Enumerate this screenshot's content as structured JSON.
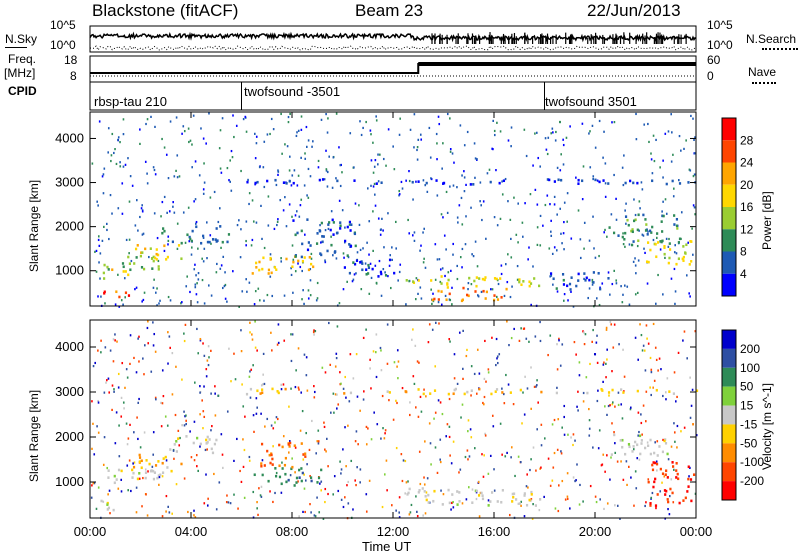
{
  "header": {
    "station": "Blackstone (fitACF)",
    "beam": "Beam 23",
    "date": "22/Jun/2013"
  },
  "left_labels": {
    "nsky": "N.Sky",
    "freq_line1": "Freq.",
    "freq_line2": "[MHz]",
    "cpid": "CPID"
  },
  "right_labels": {
    "nsearch": "N.Search",
    "nave": "Nave"
  },
  "noise_panel": {
    "left_ticks": [
      "10^5",
      "10^0"
    ],
    "right_ticks": [
      "10^5",
      "10^0"
    ]
  },
  "freq_panel": {
    "left_ticks": [
      "18",
      "8"
    ],
    "right_ticks": [
      "60",
      "0"
    ]
  },
  "cpid_segments": [
    {
      "label": "rbsp-tau 210",
      "start_hour": 0
    },
    {
      "label": "twofsound -3501",
      "start_hour": 6
    },
    {
      "label": "twofsound 3501",
      "start_hour": 18
    }
  ],
  "colors": {
    "power": [
      "#0000ff",
      "#1e5ab4",
      "#2e8b57",
      "#9acd32",
      "#ffd700",
      "#ffa500",
      "#ff4500",
      "#ff0000"
    ],
    "velocity": [
      "#0000cc",
      "#2e4fa3",
      "#2e8b57",
      "#7fd13b",
      "#c8c8c8",
      "#ffd100",
      "#ff8c00",
      "#ff4500",
      "#ff0000"
    ]
  },
  "chart_data": [
    {
      "type": "heatmap",
      "name": "power",
      "x_ticks": [
        "00:00",
        "04:00",
        "08:00",
        "12:00",
        "16:00",
        "20:00",
        "00:00"
      ],
      "xlim_hours": [
        0,
        24
      ],
      "xlabel": "Time UT",
      "ylabel": "Slant Range [km]",
      "y_ticks": [
        1000,
        2000,
        3000,
        4000
      ],
      "ylim": [
        200,
        4600
      ],
      "colorbar": {
        "label": "Power [dB]",
        "ticks": [
          4,
          8,
          12,
          16,
          20,
          24,
          28
        ],
        "range": [
          0,
          32
        ]
      },
      "regions": [
        {
          "t": [
            0.3,
            1.5
          ],
          "r": [
            380,
            620
          ],
          "value": 25
        },
        {
          "t": [
            0.3,
            1.5
          ],
          "r": [
            820,
            1060
          ],
          "value": 18
        },
        {
          "t": [
            0.5,
            3.0
          ],
          "r": [
            1050,
            1350
          ],
          "value": 12
        },
        {
          "t": [
            1.6,
            3.6
          ],
          "r": [
            1250,
            1650
          ],
          "value": 18
        },
        {
          "t": [
            2.8,
            5.5
          ],
          "r": [
            1650,
            2050
          ],
          "value": 8
        },
        {
          "t": [
            6.4,
            9.2
          ],
          "r": [
            950,
            1350
          ],
          "value": 20
        },
        {
          "t": [
            8.0,
            10.5
          ],
          "r": [
            1300,
            2200
          ],
          "value": 6
        },
        {
          "t": [
            10.0,
            12.4
          ],
          "r": [
            900,
            1300
          ],
          "value": 6
        },
        {
          "t": [
            12.5,
            18.0
          ],
          "r": [
            650,
            900
          ],
          "value": 16
        },
        {
          "t": [
            13.5,
            16.5
          ],
          "r": [
            330,
            650
          ],
          "value": 24
        },
        {
          "t": [
            18.0,
            20.5
          ],
          "r": [
            600,
            1000
          ],
          "value": 6
        },
        {
          "t": [
            20.5,
            23.4
          ],
          "r": [
            1600,
            2300
          ],
          "value": 10
        },
        {
          "t": [
            22.0,
            23.8
          ],
          "r": [
            1050,
            1700
          ],
          "value": 16
        },
        {
          "t": [
            6.0,
            24.0
          ],
          "r": [
            2980,
            3100
          ],
          "value": 4
        }
      ]
    },
    {
      "type": "heatmap",
      "name": "velocity",
      "x_ticks": [
        "00:00",
        "04:00",
        "08:00",
        "12:00",
        "16:00",
        "20:00",
        "00:00"
      ],
      "xlim_hours": [
        0,
        24
      ],
      "xlabel": "Time UT",
      "ylabel": "Slant Range [km]",
      "y_ticks": [
        1000,
        2000,
        3000,
        4000
      ],
      "ylim": [
        200,
        4600
      ],
      "colorbar": {
        "label": "Velocity [m s^-1]",
        "ticks": [
          200,
          100,
          50,
          15,
          -15,
          -50,
          -100,
          -200
        ]
      },
      "regions": [
        {
          "t": [
            0.3,
            1.5
          ],
          "r": [
            380,
            620
          ],
          "value": 0
        },
        {
          "t": [
            0.3,
            3.0
          ],
          "r": [
            1000,
            1350
          ],
          "value": 0
        },
        {
          "t": [
            1.6,
            3.6
          ],
          "r": [
            1250,
            1650
          ],
          "value": -30
        },
        {
          "t": [
            3.0,
            5.0
          ],
          "r": [
            1650,
            2050
          ],
          "value": 0
        },
        {
          "t": [
            6.4,
            9.2
          ],
          "r": [
            950,
            1350
          ],
          "value": 60
        },
        {
          "t": [
            6.4,
            8.5
          ],
          "r": [
            1350,
            1900
          ],
          "value": -70
        },
        {
          "t": [
            12.5,
            18.0
          ],
          "r": [
            500,
            900
          ],
          "value": 0
        },
        {
          "t": [
            20.5,
            23.0
          ],
          "r": [
            1600,
            2100
          ],
          "value": 0
        },
        {
          "t": [
            22.0,
            23.9
          ],
          "r": [
            500,
            1500
          ],
          "value": -150
        },
        {
          "t": [
            6.0,
            24.0
          ],
          "r": [
            2980,
            3100
          ],
          "value": -20
        }
      ]
    }
  ]
}
